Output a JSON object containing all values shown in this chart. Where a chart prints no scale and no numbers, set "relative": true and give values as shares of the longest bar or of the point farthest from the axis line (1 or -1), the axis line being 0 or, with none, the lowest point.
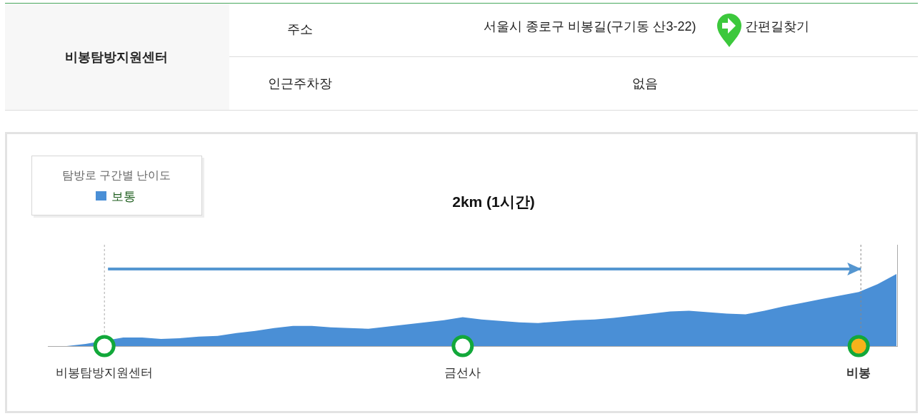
{
  "chart_data": {
    "type": "area",
    "title": "2km (1시간)",
    "legend_title": "탐방로 구간별 난이도",
    "legend": "top left",
    "relative": true,
    "categories": [
      null,
      null,
      null,
      "비봉탐방지원센터",
      null,
      null,
      null,
      null,
      null,
      null,
      null,
      null,
      null,
      null,
      null,
      null,
      null,
      null,
      null,
      null,
      null,
      null,
      "금선사",
      null,
      null,
      null,
      null,
      null,
      null,
      null,
      null,
      null,
      null,
      null,
      null,
      null,
      null,
      null,
      null,
      null,
      null,
      null,
      null,
      "비봉",
      null,
      null
    ],
    "series": [
      {
        "name": "보통",
        "color": "#4a8fd6",
        "values": [
          0,
          0,
          0.03,
          null,
          0.12,
          0.12,
          0.1,
          0.11,
          0.13,
          0.14,
          0.18,
          0.21,
          0.25,
          0.28,
          0.28,
          0.26,
          0.25,
          0.24,
          0.27,
          0.3,
          0.33,
          0.36,
          0.4,
          0.37,
          0.35,
          0.33,
          0.32,
          0.34,
          0.36,
          0.37,
          0.39,
          0.42,
          0.45,
          0.48,
          0.49,
          0.47,
          0.45,
          0.44,
          0.49,
          0.55,
          0.6,
          0.65,
          0.7,
          0.75,
          0.86,
          1
        ]
      }
    ],
    "annotations": [
      "비봉탐방지원센터",
      "주소",
      "서울시 종로구 비봉길(구기동 산3-22)",
      "간편길찾기",
      "인근주차장",
      "없음"
    ]
  }
}
